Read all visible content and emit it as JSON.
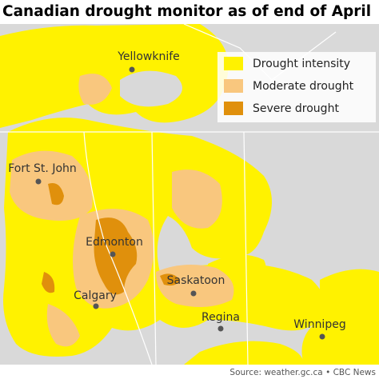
{
  "title": "Canadian drought monitor as of end of April",
  "legend": [
    "Drought intensity",
    "Moderate drought",
    "Severe drought"
  ],
  "cities": [
    "Yellowknife",
    "Fort St. John",
    "Edmonton",
    "Calgary",
    "Saskatoon",
    "Regina",
    "Winnipeg"
  ],
  "source": "Source: weather.gc.ca • CBC News"
}
